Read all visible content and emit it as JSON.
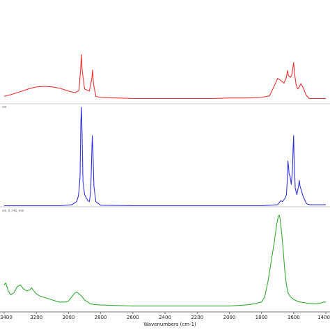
{
  "chart_data": {
    "type": "line",
    "xlabel": "Wavenumbers (cm-1)",
    "xlim": [
      3400,
      1400
    ],
    "x_ticks": [
      "3400",
      "3200",
      "3000",
      "2800",
      "2600",
      "2400",
      "2200",
      "2000",
      "1800",
      "1600",
      "1400"
    ],
    "grid": false,
    "legend": "none",
    "panels": [
      {
        "label": "",
        "color": "#ee3333",
        "gap": [
          2380,
          2320
        ],
        "series": [
          {
            "name": "",
            "points": [
              [
                3400,
                0.06
              ],
              [
                3350,
                0.1
              ],
              [
                3300,
                0.15
              ],
              [
                3250,
                0.2
              ],
              [
                3200,
                0.24
              ],
              [
                3150,
                0.25
              ],
              [
                3100,
                0.24
              ],
              [
                3050,
                0.21
              ],
              [
                3000,
                0.16
              ],
              [
                2960,
                0.13
              ],
              [
                2935,
                0.17
              ],
              [
                2925,
                0.55
              ],
              [
                2920,
                0.85
              ],
              [
                2915,
                0.55
              ],
              [
                2900,
                0.2
              ],
              [
                2870,
                0.16
              ],
              [
                2855,
                0.4
              ],
              [
                2850,
                0.56
              ],
              [
                2845,
                0.3
              ],
              [
                2830,
                0.06
              ],
              [
                2800,
                0.04
              ],
              [
                2700,
                0.03
              ],
              [
                2600,
                0.02
              ],
              [
                2500,
                0.02
              ],
              [
                2400,
                0.02
              ],
              [
                2300,
                0.02
              ],
              [
                2200,
                0.02
              ],
              [
                2100,
                0.02
              ],
              [
                2000,
                0.03
              ],
              [
                1900,
                0.03
              ],
              [
                1800,
                0.04
              ],
              [
                1750,
                0.07
              ],
              [
                1720,
                0.26
              ],
              [
                1700,
                0.4
              ],
              [
                1680,
                0.36
              ],
              [
                1660,
                0.31
              ],
              [
                1645,
                0.42
              ],
              [
                1638,
                0.55
              ],
              [
                1632,
                0.45
              ],
              [
                1620,
                0.42
              ],
              [
                1610,
                0.48
              ],
              [
                1605,
                0.6
              ],
              [
                1600,
                0.7
              ],
              [
                1595,
                0.5
              ],
              [
                1585,
                0.28
              ],
              [
                1575,
                0.2
              ],
              [
                1565,
                0.24
              ],
              [
                1555,
                0.3
              ],
              [
                1545,
                0.25
              ],
              [
                1535,
                0.18
              ],
              [
                1525,
                0.1
              ],
              [
                1510,
                0.04
              ],
              [
                1500,
                0.02
              ],
              [
                1450,
                0.02
              ],
              [
                1400,
                0.02
              ]
            ]
          }
        ]
      },
      {
        "label": "nm",
        "color": "#3333dd",
        "series": [
          {
            "name": "",
            "points": [
              [
                3400,
                0.01
              ],
              [
                3200,
                0.01
              ],
              [
                3050,
                0.01
              ],
              [
                2980,
                0.02
              ],
              [
                2950,
                0.05
              ],
              [
                2940,
                0.1
              ],
              [
                2935,
                0.15
              ],
              [
                2928,
                0.3
              ],
              [
                2924,
                0.8
              ],
              [
                2920,
                0.98
              ],
              [
                2916,
                0.75
              ],
              [
                2910,
                0.25
              ],
              [
                2900,
                0.12
              ],
              [
                2880,
                0.06
              ],
              [
                2870,
                0.05
              ],
              [
                2862,
                0.15
              ],
              [
                2856,
                0.5
              ],
              [
                2852,
                0.7
              ],
              [
                2848,
                0.55
              ],
              [
                2842,
                0.2
              ],
              [
                2830,
                0.05
              ],
              [
                2800,
                0.015
              ],
              [
                2600,
                0.01
              ],
              [
                2400,
                0.01
              ],
              [
                2200,
                0.01
              ],
              [
                2000,
                0.01
              ],
              [
                1800,
                0.01
              ],
              [
                1700,
                0.02
              ],
              [
                1680,
                0.06
              ],
              [
                1670,
                0.05
              ],
              [
                1655,
                0.08
              ],
              [
                1650,
                0.1
              ],
              [
                1645,
                0.12
              ],
              [
                1640,
                0.25
              ],
              [
                1636,
                0.45
              ],
              [
                1632,
                0.4
              ],
              [
                1628,
                0.32
              ],
              [
                1622,
                0.3
              ],
              [
                1615,
                0.22
              ],
              [
                1608,
                0.35
              ],
              [
                1603,
                0.6
              ],
              [
                1600,
                0.7
              ],
              [
                1597,
                0.45
              ],
              [
                1590,
                0.18
              ],
              [
                1580,
                0.12
              ],
              [
                1570,
                0.2
              ],
              [
                1565,
                0.26
              ],
              [
                1560,
                0.2
              ],
              [
                1550,
                0.15
              ],
              [
                1545,
                0.12
              ],
              [
                1535,
                0.08
              ],
              [
                1520,
                0.03
              ],
              [
                1500,
                0.02
              ],
              [
                1480,
                0.02
              ],
              [
                1440,
                0.02
              ],
              [
                1400,
                0.02
              ]
            ]
          }
        ]
      },
      {
        "label": "nm, Il., HG, mm",
        "color": "#33aa33",
        "series": [
          {
            "name": "",
            "points": [
              [
                3400,
                0.22
              ],
              [
                3390,
                0.24
              ],
              [
                3375,
                0.16
              ],
              [
                3360,
                0.12
              ],
              [
                3340,
                0.14
              ],
              [
                3320,
                0.2
              ],
              [
                3300,
                0.22
              ],
              [
                3280,
                0.18
              ],
              [
                3260,
                0.16
              ],
              [
                3240,
                0.17
              ],
              [
                3230,
                0.19
              ],
              [
                3215,
                0.16
              ],
              [
                3200,
                0.13
              ],
              [
                3180,
                0.11
              ],
              [
                3160,
                0.1
              ],
              [
                3140,
                0.09
              ],
              [
                3120,
                0.08
              ],
              [
                3100,
                0.07
              ],
              [
                3080,
                0.06
              ],
              [
                3060,
                0.05
              ],
              [
                3040,
                0.05
              ],
              [
                3020,
                0.05
              ],
              [
                3000,
                0.06
              ],
              [
                2980,
                0.1
              ],
              [
                2960,
                0.14
              ],
              [
                2950,
                0.15
              ],
              [
                2935,
                0.13
              ],
              [
                2920,
                0.11
              ],
              [
                2900,
                0.07
              ],
              [
                2880,
                0.05
              ],
              [
                2860,
                0.03
              ],
              [
                2840,
                0.025
              ],
              [
                2800,
                0.02
              ],
              [
                2700,
                0.015
              ],
              [
                2600,
                0.01
              ],
              [
                2500,
                0.01
              ],
              [
                2400,
                0.01
              ],
              [
                2300,
                0.01
              ],
              [
                2200,
                0.01
              ],
              [
                2100,
                0.01
              ],
              [
                2000,
                0.01
              ],
              [
                1950,
                0.015
              ],
              [
                1900,
                0.02
              ],
              [
                1850,
                0.03
              ],
              [
                1800,
                0.05
              ],
              [
                1780,
                0.1
              ],
              [
                1760,
                0.25
              ],
              [
                1740,
                0.45
              ],
              [
                1720,
                0.65
              ],
              [
                1705,
                0.82
              ],
              [
                1695,
                0.9
              ],
              [
                1690,
                0.91
              ],
              [
                1685,
                0.88
              ],
              [
                1675,
                0.74
              ],
              [
                1665,
                0.56
              ],
              [
                1655,
                0.36
              ],
              [
                1645,
                0.22
              ],
              [
                1635,
                0.14
              ],
              [
                1620,
                0.1
              ],
              [
                1600,
                0.075
              ],
              [
                1580,
                0.06
              ],
              [
                1560,
                0.05
              ],
              [
                1540,
                0.045
              ],
              [
                1500,
                0.035
              ],
              [
                1460,
                0.03
              ],
              [
                1430,
                0.04
              ],
              [
                1415,
                0.05
              ],
              [
                1400,
                0.05
              ]
            ]
          }
        ]
      }
    ]
  }
}
